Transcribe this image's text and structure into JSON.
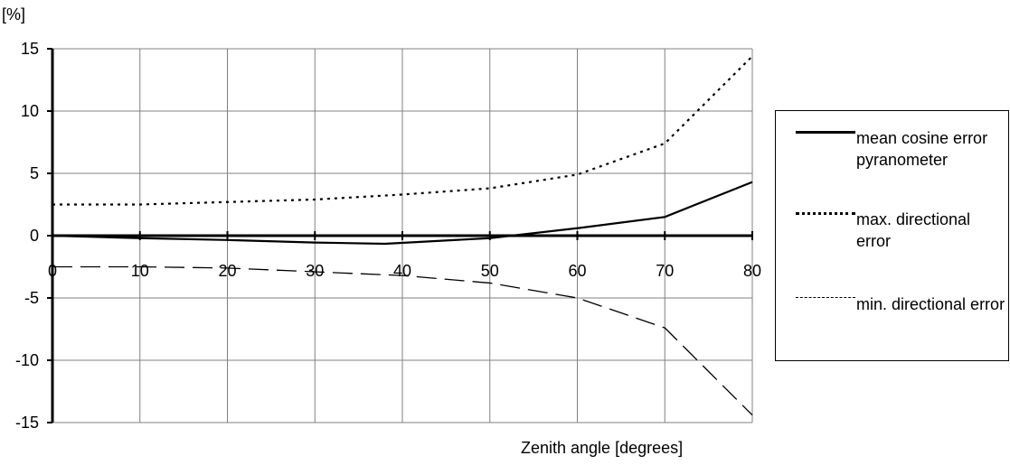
{
  "chart_data": {
    "type": "line",
    "ylabel": "[%]",
    "xlabel": "Zenith angle [degrees]",
    "xlim": [
      0,
      80
    ],
    "ylim": [
      -15,
      15
    ],
    "x_ticks": [
      0,
      10,
      20,
      30,
      40,
      50,
      60,
      70,
      80
    ],
    "y_ticks": [
      15,
      10,
      5,
      0,
      -5,
      -10,
      -15
    ],
    "grid": true,
    "legend_position": "right",
    "series": [
      {
        "name": "mean cosine error pyranometer",
        "style": "solid",
        "color": "#000000",
        "x": [
          0,
          10,
          20,
          30,
          38,
          50,
          60,
          70,
          80
        ],
        "values": [
          0,
          -0.2,
          -0.35,
          -0.55,
          -0.65,
          -0.2,
          0.6,
          1.5,
          4.3
        ]
      },
      {
        "name": "max. directional error",
        "style": "dotted",
        "color": "#000000",
        "x": [
          0,
          10,
          20,
          30,
          40,
          50,
          60,
          70,
          80
        ],
        "values": [
          2.5,
          2.5,
          2.7,
          2.9,
          3.3,
          3.8,
          4.9,
          7.4,
          14.4
        ]
      },
      {
        "name": "min. directional error",
        "style": "dashed",
        "color": "#000000",
        "x": [
          0,
          10,
          20,
          30,
          40,
          50,
          60,
          70,
          80
        ],
        "values": [
          -2.5,
          -2.5,
          -2.6,
          -2.9,
          -3.2,
          -3.8,
          -5.0,
          -7.4,
          -14.4
        ]
      }
    ]
  },
  "legend": {
    "items": [
      {
        "label": "mean cosine error pyranometer"
      },
      {
        "label": "max. directional error"
      },
      {
        "label": "min. directional error"
      }
    ]
  }
}
